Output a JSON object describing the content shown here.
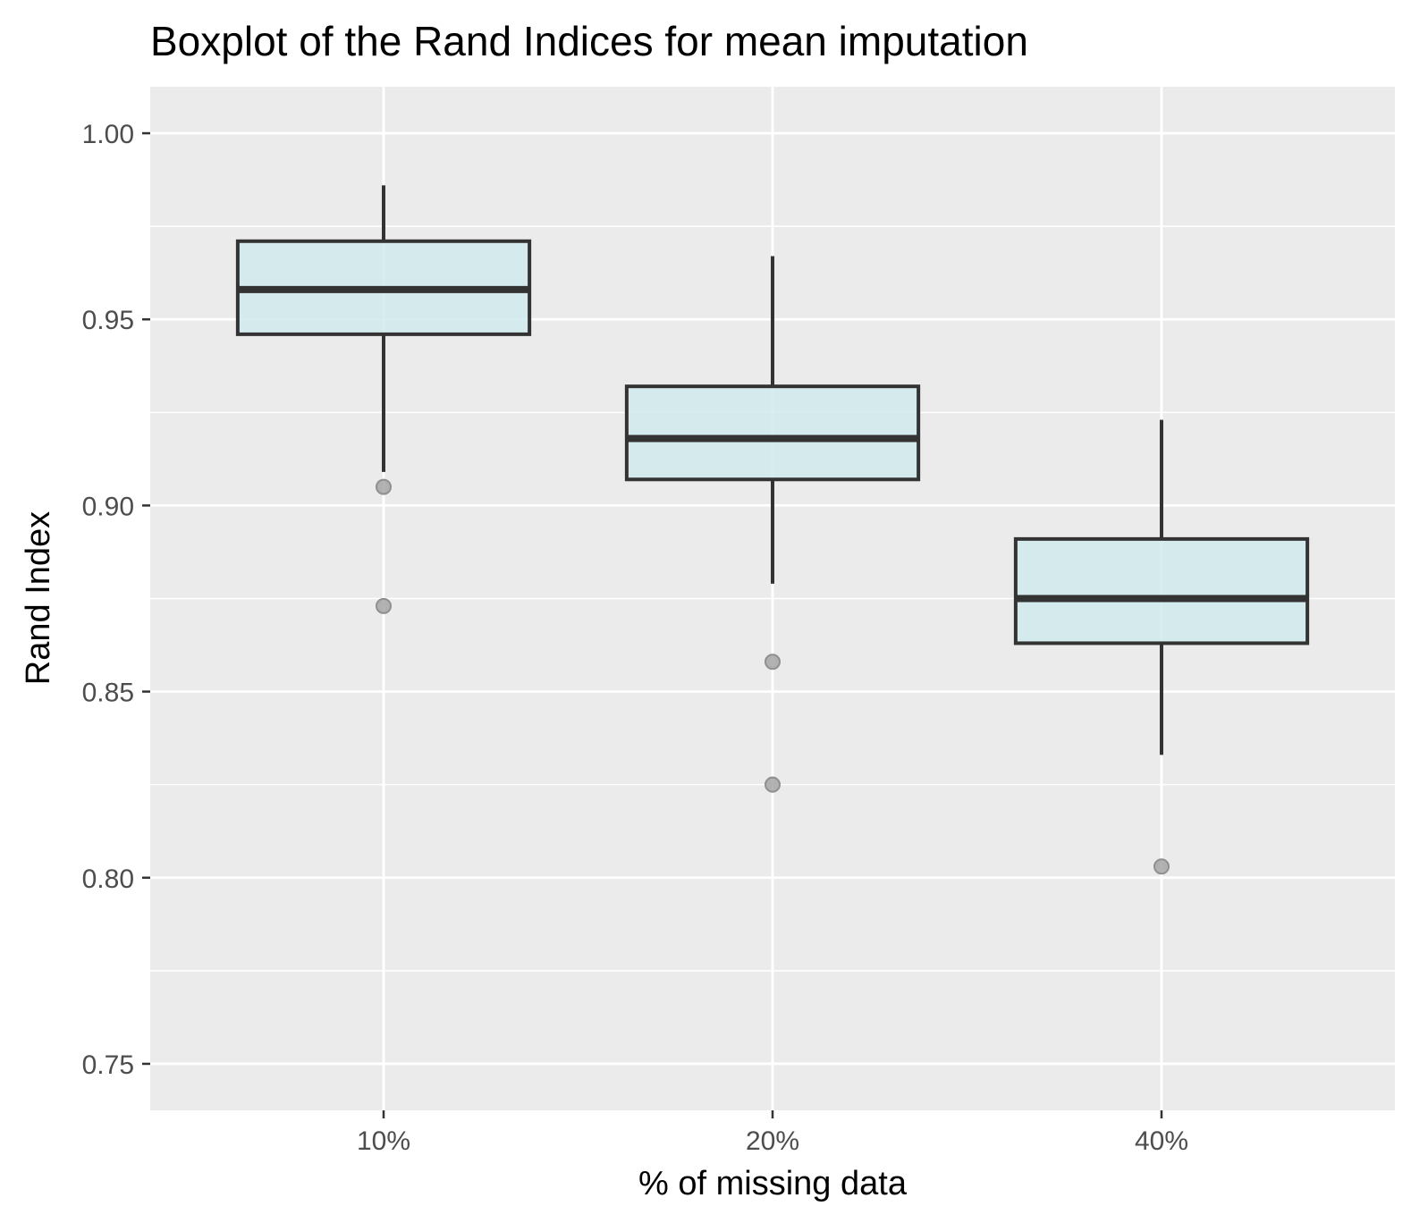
{
  "chart_data": {
    "type": "boxplot",
    "title": "Boxplot of the Rand Indices for mean imputation",
    "xlabel": "% of missing data",
    "ylabel": "Rand Index",
    "categories": [
      "10%",
      "20%",
      "40%"
    ],
    "ylim": [
      0.7375,
      1.0125
    ],
    "yticks": [
      0.75,
      0.8,
      0.85,
      0.9,
      0.95,
      1.0
    ],
    "ytick_labels": [
      "0.75",
      "0.80",
      "0.85",
      "0.90",
      "0.95",
      "1.00"
    ],
    "grid": true,
    "boxes": [
      {
        "category": "10%",
        "whisker_low": 0.909,
        "q1": 0.946,
        "median": 0.958,
        "q3": 0.971,
        "whisker_high": 0.986,
        "outliers": [
          0.905,
          0.873
        ]
      },
      {
        "category": "20%",
        "whisker_low": 0.879,
        "q1": 0.907,
        "median": 0.918,
        "q3": 0.932,
        "whisker_high": 0.967,
        "outliers": [
          0.858,
          0.825
        ]
      },
      {
        "category": "40%",
        "whisker_low": 0.833,
        "q1": 0.863,
        "median": 0.875,
        "q3": 0.891,
        "whisker_high": 0.923,
        "outliers": [
          0.803
        ]
      }
    ],
    "colors": {
      "panel_background": "#ebebeb",
      "gridline": "#ffffff",
      "box_fill": "#d0eaed",
      "box_stroke": "#333333",
      "outlier": "#a6a6a6",
      "tick_text": "#4d4d4d",
      "tick_mark": "#333333"
    }
  }
}
